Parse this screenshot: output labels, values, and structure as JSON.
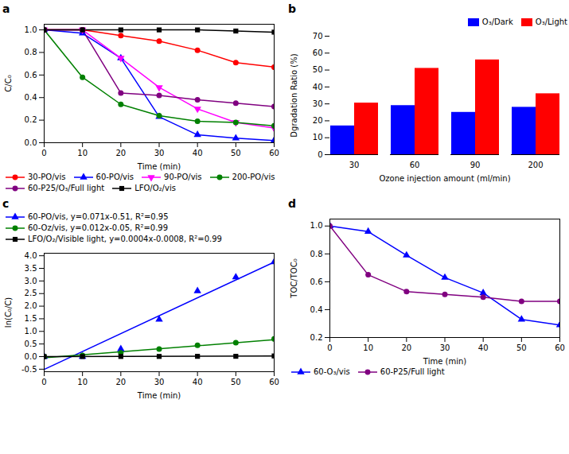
{
  "chart_data": [
    {
      "type": "line",
      "title": "a",
      "x": [
        0,
        10,
        20,
        30,
        40,
        50,
        60
      ],
      "series": [
        {
          "name": "30-PO/vis",
          "color": "#FF0000",
          "marker": "circle",
          "values": [
            1.0,
            1.0,
            0.95,
            0.9,
            0.82,
            0.71,
            0.67
          ]
        },
        {
          "name": "60-PO/vis",
          "color": "#0000FF",
          "marker": "triangle-up",
          "values": [
            1.0,
            0.97,
            0.75,
            0.23,
            0.07,
            0.04,
            0.02
          ]
        },
        {
          "name": "90-PO/vis",
          "color": "#FF00FF",
          "marker": "triangle-down",
          "values": [
            1.0,
            1.0,
            0.75,
            0.49,
            0.3,
            0.18,
            0.13
          ]
        },
        {
          "name": "200-PO/vis",
          "color": "#008000",
          "marker": "circle",
          "values": [
            1.0,
            0.58,
            0.34,
            0.24,
            0.19,
            0.18,
            0.15
          ]
        },
        {
          "name": "60-P25/O₃/Full light",
          "color": "#800080",
          "marker": "circle",
          "values": [
            1.0,
            1.0,
            0.44,
            0.42,
            0.38,
            0.35,
            0.32
          ]
        },
        {
          "name": "LFO/O₂/vis",
          "color": "#000000",
          "marker": "square",
          "values": [
            1.0,
            1.0,
            1.0,
            1.0,
            1.0,
            0.99,
            0.98
          ]
        }
      ],
      "xlabel": "Time (min)",
      "ylabel": "C/C₀",
      "xlim": [
        0,
        60
      ],
      "ylim": [
        0.0,
        1.05
      ],
      "xticks": [
        0,
        10,
        20,
        30,
        40,
        50,
        60
      ],
      "yticks": [
        {
          "value": 0.0,
          "label": "0.0"
        },
        0.2,
        0.4,
        0.6,
        0.8,
        {
          "value": 1.0,
          "label": "1.0"
        }
      ],
      "legend": "lower left"
    },
    {
      "type": "bar",
      "title": "b",
      "categories": [
        "30",
        "60",
        "90",
        "200"
      ],
      "series": [
        {
          "name": "O₃/Dark",
          "color": "#0000FF",
          "values": [
            17.0,
            29.0,
            25.0,
            28.0
          ]
        },
        {
          "name": "O₃/Light",
          "color": "#FF0000",
          "values": [
            30.5,
            51.0,
            56.0,
            36.0
          ]
        }
      ],
      "xlabel": "Ozone injection amount (ml/min)",
      "ylabel": "Dgradation Ratio (%)",
      "ylim": [
        0,
        70
      ],
      "yticks": [
        0,
        10,
        20,
        30,
        40,
        50,
        60,
        70
      ],
      "legend": "upper right"
    },
    {
      "type": "scatter",
      "title": "c",
      "x": [
        0,
        10,
        20,
        30,
        40,
        50,
        60
      ],
      "series": [
        {
          "name": "60-PO/vis, y=0.071x-0.51, R²=0.95",
          "color": "#0000FF",
          "marker": "triangle-up",
          "values": [
            0.0,
            0.0,
            0.3,
            1.47,
            2.6,
            3.15,
            3.75
          ],
          "fit": {
            "x": [
              0,
              60
            ],
            "values": [
              -0.51,
              3.75
            ]
          }
        },
        {
          "name": "60-Oz/vis, y=0.012x-0.05, R²=0.99",
          "color": "#008000",
          "marker": "circle",
          "values": [
            0.0,
            0.05,
            0.15,
            0.3,
            0.45,
            0.55,
            0.7
          ],
          "fit": {
            "x": [
              0,
              60
            ],
            "values": [
              -0.05,
              0.67
            ]
          }
        },
        {
          "name": "LFO/O₂/Visible light, y=0.0004x-0.0008, R²=0.99",
          "color": "#000000",
          "marker": "square",
          "values": [
            0.0,
            0.002,
            0.005,
            0.007,
            0.01,
            0.012,
            0.025
          ],
          "fit": {
            "x": [
              0,
              60
            ],
            "values": [
              -0.0008,
              0.0232
            ]
          }
        }
      ],
      "xlabel": "Time (min)",
      "ylabel": "ln(C₀/C)",
      "xlim": [
        0,
        60
      ],
      "ylim": [
        -0.6,
        4.1
      ],
      "xticks": [
        0,
        10,
        20,
        30,
        40,
        50,
        60
      ],
      "yticks": [
        -0.5,
        {
          "value": 0.0,
          "label": "0.0"
        },
        0.5,
        {
          "value": 1.0,
          "label": "1.0"
        },
        1.5,
        {
          "value": 2.0,
          "label": "2.0"
        },
        2.5,
        {
          "value": 3.0,
          "label": "3.0"
        },
        3.5,
        {
          "value": 4.0,
          "label": "4.0"
        }
      ],
      "legend": "upper left"
    },
    {
      "type": "line",
      "title": "d",
      "x": [
        0,
        10,
        20,
        30,
        40,
        50,
        60
      ],
      "series": [
        {
          "name": "60-O₃/vis",
          "color": "#0000FF",
          "marker": "triangle-up",
          "values": [
            1.0,
            0.96,
            0.79,
            0.63,
            0.52,
            0.33,
            0.29
          ]
        },
        {
          "name": "60-P25/Full light",
          "color": "#800080",
          "marker": "circle",
          "values": [
            1.0,
            0.65,
            0.53,
            0.51,
            0.49,
            0.46,
            0.46
          ]
        }
      ],
      "xlabel": "Time (min)",
      "ylabel": "TOC/TOC₀",
      "xlim": [
        0,
        60
      ],
      "ylim": [
        0.2,
        1.05
      ],
      "xticks": [
        0,
        10,
        20,
        30,
        40,
        50,
        60
      ],
      "yticks": [
        0.2,
        0.4,
        0.6,
        0.8,
        {
          "value": 1.0,
          "label": "1.0"
        }
      ],
      "legend": "lower left"
    }
  ]
}
